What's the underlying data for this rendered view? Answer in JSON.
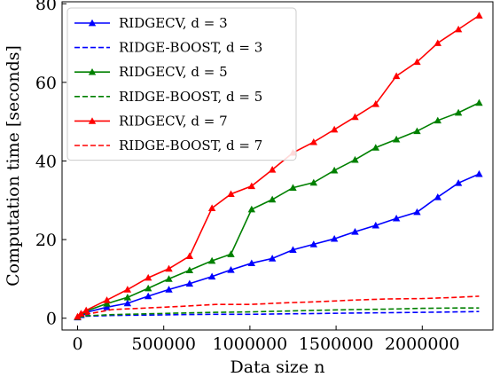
{
  "chart_data": {
    "type": "line",
    "xlabel": "Data size n",
    "ylabel": "Computation time [seconds]",
    "xlim": [
      -90000,
      2410000
    ],
    "ylim": [
      -3,
      80.5
    ],
    "grid": false,
    "legend_position": "top-left",
    "x_ticks": [
      0,
      500000,
      1000000,
      1500000,
      2000000
    ],
    "x_tick_labels": [
      "0",
      "500000",
      "1000000",
      "1500000",
      "2000000"
    ],
    "y_ticks": [
      0,
      20,
      40,
      60,
      80
    ],
    "y_tick_labels": [
      "0",
      "20",
      "40",
      "60",
      "80"
    ],
    "series": [
      {
        "name": "RIDGECV, d = 3",
        "color": "#0000ff",
        "dash": "solid",
        "marker": "triangle",
        "x": [
          0,
          20000,
          50000,
          170000,
          290000,
          410000,
          530000,
          650000,
          780000,
          890000,
          1010000,
          1130000,
          1250000,
          1370000,
          1490000,
          1610000,
          1730000,
          1850000,
          1970000,
          2090000,
          2210000,
          2330000
        ],
        "y": [
          0.2,
          0.8,
          1.5,
          2.8,
          3.8,
          5.6,
          7.3,
          8.8,
          10.6,
          12.3,
          14.0,
          15.2,
          17.4,
          18.8,
          20.2,
          22.0,
          23.6,
          25.4,
          27.0,
          30.8,
          34.4,
          36.7
        ]
      },
      {
        "name": "RIDGE-BOOST, d = 3",
        "color": "#0000ff",
        "dash": "dashed",
        "marker": "none",
        "x": [
          0,
          50000,
          200000,
          400000,
          600000,
          800000,
          1000000,
          1200000,
          1400000,
          1600000,
          1800000,
          2000000,
          2200000,
          2330000
        ],
        "y": [
          0.2,
          0.5,
          0.7,
          0.8,
          0.9,
          1.0,
          1.0,
          1.1,
          1.2,
          1.3,
          1.4,
          1.5,
          1.6,
          1.7
        ]
      },
      {
        "name": "RIDGECV, d = 5",
        "color": "#008000",
        "dash": "solid",
        "marker": "triangle",
        "x": [
          0,
          20000,
          50000,
          170000,
          290000,
          410000,
          530000,
          650000,
          780000,
          890000,
          1010000,
          1130000,
          1250000,
          1370000,
          1490000,
          1610000,
          1730000,
          1850000,
          1970000,
          2090000,
          2210000,
          2330000
        ],
        "y": [
          0.3,
          1.0,
          1.8,
          3.7,
          5.3,
          7.6,
          10.0,
          12.2,
          14.6,
          16.3,
          27.7,
          30.2,
          33.2,
          34.5,
          37.6,
          40.3,
          43.4,
          45.5,
          47.6,
          50.3,
          52.3,
          54.8
        ]
      },
      {
        "name": "RIDGE-BOOST, d = 5",
        "color": "#008000",
        "dash": "dashed",
        "marker": "none",
        "x": [
          0,
          50000,
          200000,
          400000,
          600000,
          800000,
          1000000,
          1200000,
          1400000,
          1600000,
          1800000,
          2000000,
          2200000,
          2330000
        ],
        "y": [
          0.2,
          0.6,
          0.9,
          1.1,
          1.3,
          1.5,
          1.6,
          1.8,
          2.0,
          2.2,
          2.3,
          2.5,
          2.6,
          2.6
        ]
      },
      {
        "name": "RIDGECV, d = 7",
        "color": "#ff0000",
        "dash": "solid",
        "marker": "triangle",
        "x": [
          0,
          20000,
          50000,
          170000,
          290000,
          410000,
          530000,
          650000,
          780000,
          890000,
          1010000,
          1130000,
          1250000,
          1370000,
          1490000,
          1610000,
          1730000,
          1850000,
          1970000,
          2090000,
          2210000,
          2330000
        ],
        "y": [
          0.4,
          1.2,
          2.0,
          4.6,
          7.3,
          10.3,
          12.6,
          15.8,
          28.0,
          31.6,
          33.6,
          37.8,
          42.1,
          44.8,
          48.0,
          51.2,
          54.5,
          61.6,
          65.2,
          70.0,
          73.5,
          77.0
        ]
      },
      {
        "name": "RIDGE-BOOST, d = 7",
        "color": "#ff0000",
        "dash": "dashed",
        "marker": "none",
        "x": [
          0,
          50000,
          200000,
          400000,
          600000,
          800000,
          1000000,
          1200000,
          1400000,
          1600000,
          1800000,
          2000000,
          2200000,
          2330000
        ],
        "y": [
          0.3,
          1.0,
          2.2,
          2.6,
          3.0,
          3.5,
          3.5,
          3.9,
          4.2,
          4.6,
          4.9,
          5.0,
          5.3,
          5.6
        ]
      }
    ]
  }
}
